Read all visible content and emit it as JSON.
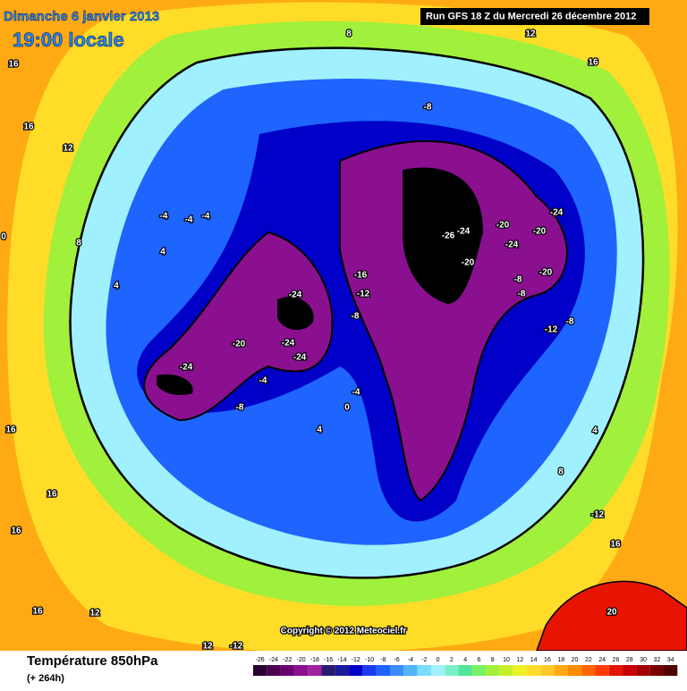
{
  "header": {
    "date": "Dimanche 6 janvier 2013",
    "time": "19:00 locale",
    "run": "Run GFS 18 Z du Mercredi 26 décembre 2012"
  },
  "footer": {
    "title": "Température 850hPa",
    "lead": "(+ 264h)",
    "copyright": "Copyright © 2012 Meteociel.fr"
  },
  "colorbar": {
    "ticks": [
      -26,
      -24,
      -22,
      -20,
      -18,
      -16,
      -14,
      -12,
      -10,
      -8,
      -6,
      -4,
      -2,
      0,
      2,
      4,
      6,
      8,
      10,
      12,
      14,
      16,
      18,
      20,
      22,
      24,
      26,
      28,
      30,
      32,
      34
    ],
    "colors": [
      "#2a0030",
      "#4b0050",
      "#6a0070",
      "#8a1090",
      "#a020a0",
      "#2a1a6e",
      "#1a1a9a",
      "#0000c8",
      "#1a3cf0",
      "#1e64ff",
      "#3c8cff",
      "#50b4ff",
      "#78dcff",
      "#a0f0ff",
      "#78f0c8",
      "#50e696",
      "#78f064",
      "#a0f03c",
      "#c8f028",
      "#f0f028",
      "#ffdc28",
      "#ffc828",
      "#ffaa14",
      "#ff8c00",
      "#ff6400",
      "#ff3c00",
      "#e61400",
      "#c80000",
      "#a00000",
      "#780000",
      "#500000"
    ]
  },
  "contour_labels": [
    "16",
    "16",
    "12",
    "8",
    "12",
    "16",
    "-8",
    "-4",
    "-4",
    "-4",
    "8",
    "4",
    "4",
    "-24",
    "-20",
    "-24",
    "-24",
    "-24",
    "-4",
    "-8",
    "-4",
    "0",
    "4",
    "-16",
    "-12",
    "-8",
    "-26",
    "-24",
    "-20",
    "-20",
    "-24",
    "-24",
    "-20",
    "-20",
    "-8",
    "-8",
    "-8",
    "-12",
    "16",
    "16",
    "16",
    "16",
    "12",
    "12",
    "-12",
    "4",
    "8",
    "-12",
    "16",
    "20",
    "0"
  ]
}
